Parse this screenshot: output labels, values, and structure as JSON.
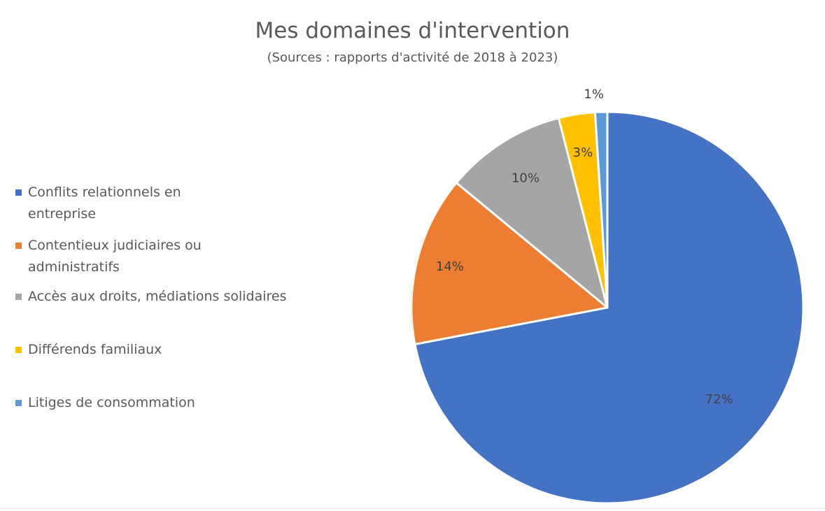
{
  "chart_data": {
    "type": "pie",
    "title": "Mes domaines d'intervention",
    "subtitle": "(Sources : rapports d'activité de 2018 à 2023)",
    "categories": [
      "Conflits relationnels en entreprise",
      "Contentieux judiciaires ou administratifs",
      "Accès aux droits, médiations solidaires",
      "Différends familiaux",
      "Litiges de consommation"
    ],
    "values": [
      72,
      14,
      10,
      3,
      1
    ],
    "data_labels": [
      "72%",
      "14%",
      "10%",
      "3%",
      "1%"
    ],
    "colors": [
      "#4472C4",
      "#ED7D31",
      "#A5A5A5",
      "#FFC000",
      "#5B9BD5"
    ],
    "legend_position": "left"
  }
}
